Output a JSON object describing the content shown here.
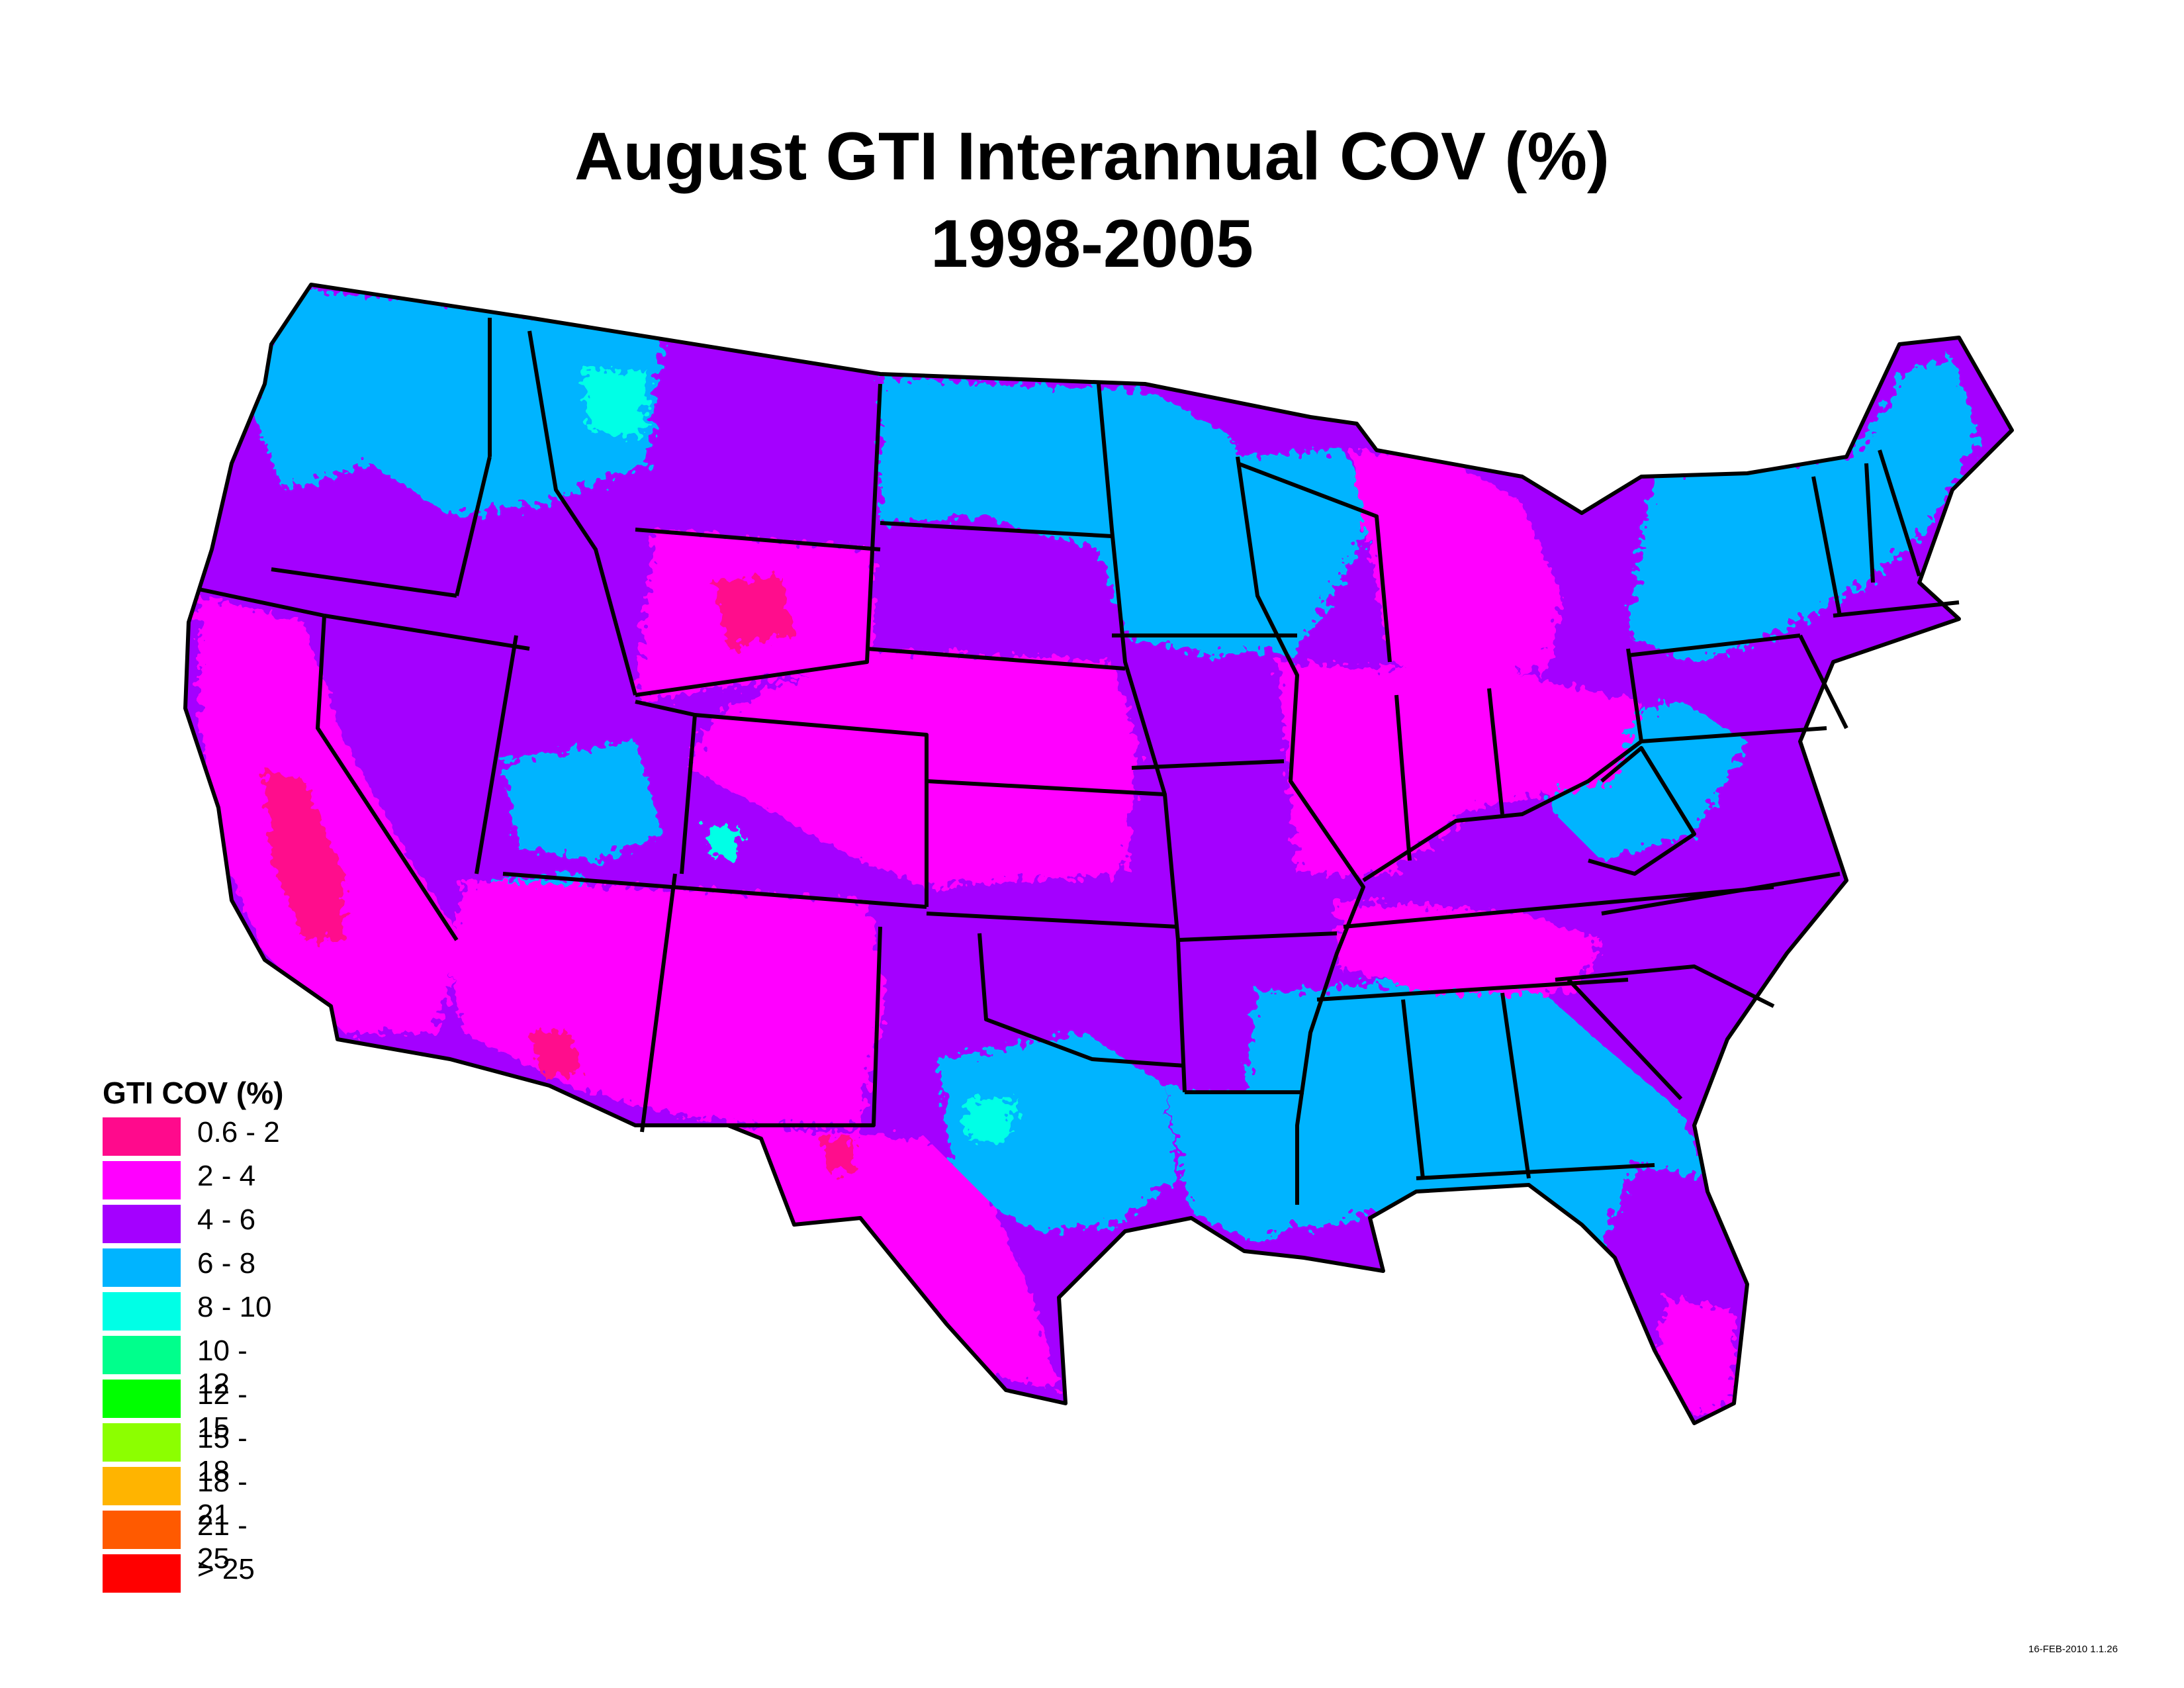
{
  "title": {
    "line1": "August GTI Interannual COV (%)",
    "line2": "1998-2005"
  },
  "legend": {
    "title": "GTI COV (%)",
    "items": [
      {
        "label": "0.6 - 2",
        "color": "#ff0a8c"
      },
      {
        "label": "2 - 4",
        "color": "#ff00ff"
      },
      {
        "label": "4 - 6",
        "color": "#a400ff"
      },
      {
        "label": "6 - 8",
        "color": "#00b4ff"
      },
      {
        "label": "8 - 10",
        "color": "#00ffe6"
      },
      {
        "label": "10 - 12",
        "color": "#00ff8c"
      },
      {
        "label": "12 - 15",
        "color": "#00ff00"
      },
      {
        "label": "15 - 18",
        "color": "#8cff00"
      },
      {
        "label": "18 - 21",
        "color": "#ffb400"
      },
      {
        "label": "21 - 25",
        "color": "#ff5a00"
      },
      {
        "label": "> 25",
        "color": "#ff0000"
      }
    ]
  },
  "timestamp": "16-FEB-2010 1.1.26"
}
